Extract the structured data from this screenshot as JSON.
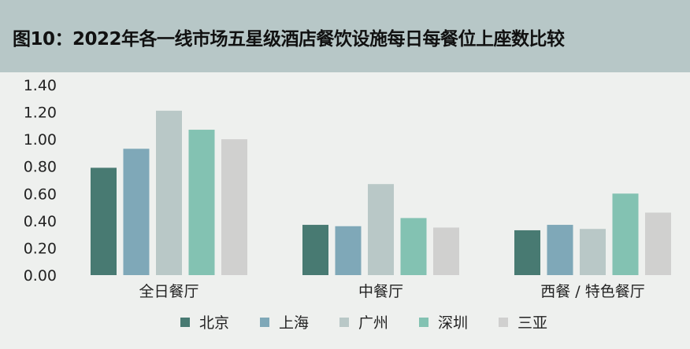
{
  "title": "图10：2022年各一线市场五星级酒店餐饮设施每日每餐位上座数比较",
  "chart_data": {
    "type": "bar",
    "categories": [
      "全日餐厅",
      "中餐厅",
      "西餐 / 特色餐厅"
    ],
    "series": [
      {
        "name": "北京",
        "color": "#487a72",
        "values": [
          0.79,
          0.37,
          0.33
        ]
      },
      {
        "name": "上海",
        "color": "#7fa8b8",
        "values": [
          0.93,
          0.36,
          0.37
        ]
      },
      {
        "name": "广州",
        "color": "#b9c8c7",
        "values": [
          1.21,
          0.67,
          0.34
        ]
      },
      {
        "name": "深圳",
        "color": "#83c2b2",
        "values": [
          1.07,
          0.42,
          0.6
        ]
      },
      {
        "name": "三亚",
        "color": "#d0d0cf",
        "values": [
          1.0,
          0.35,
          0.46
        ]
      }
    ],
    "yticks": [
      "0.00",
      "0.20",
      "0.40",
      "0.60",
      "0.80",
      "1.00",
      "1.20",
      "1.40"
    ],
    "ylim": [
      0,
      1.4
    ],
    "legend_position": "bottom",
    "grid": false
  }
}
